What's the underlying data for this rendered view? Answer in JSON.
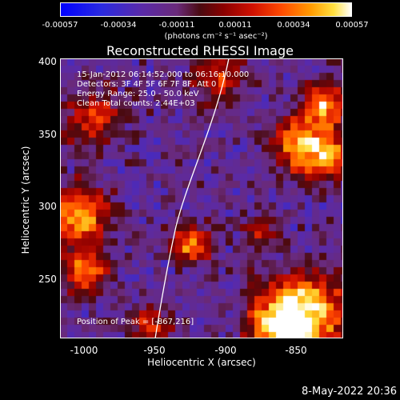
{
  "colorbar": {
    "ticks": [
      "-0.00057",
      "-0.00034",
      "-0.00011",
      "0.00011",
      "0.00034",
      "0.00057"
    ],
    "unit": "(photons cm⁻² s⁻¹ asec⁻²)"
  },
  "title": "Reconstructed RHESSI Image",
  "annotations": {
    "time": "15-Jan-2012 06:14:52.000 to 06:16:10.000",
    "detectors": "Detectors: 3F 4F 5F 6F 7F 8F, Att 0",
    "energy": "Energy Range: 25.0 - 50.0 keV",
    "clean": "Clean     Total counts: 2.44E+03",
    "peak": "Position of Peak = [-867,216]"
  },
  "axes": {
    "xlabel": "Heliocentric X (arcsec)",
    "ylabel": "Heliocentric Y (arcsec)",
    "xticks": [
      "-1000",
      "-950",
      "-900",
      "-850"
    ],
    "yticks": [
      "400",
      "350",
      "300",
      "250"
    ]
  },
  "footer": "8-May-2022 20:36"
}
